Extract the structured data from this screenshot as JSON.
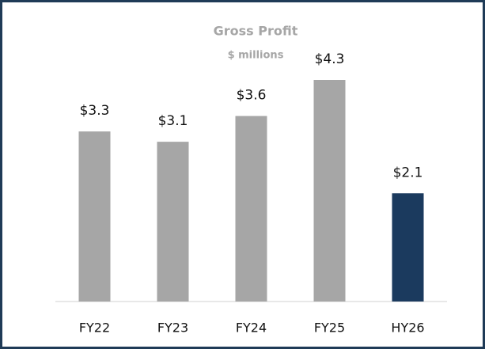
{
  "chart_data": {
    "type": "bar",
    "title": "Gross Profit",
    "subtitle": "$ millions",
    "categories": [
      "FY22",
      "FY23",
      "FY24",
      "FY25",
      "HY26"
    ],
    "values": [
      3.3,
      3.1,
      3.6,
      4.3,
      2.1
    ],
    "value_labels": [
      "$3.3",
      "$3.1",
      "$3.6",
      "$4.3",
      "$2.1"
    ],
    "colors": [
      "#a6a6a6",
      "#a6a6a6",
      "#a6a6a6",
      "#a6a6a6",
      "#1b3a5e"
    ]
  }
}
